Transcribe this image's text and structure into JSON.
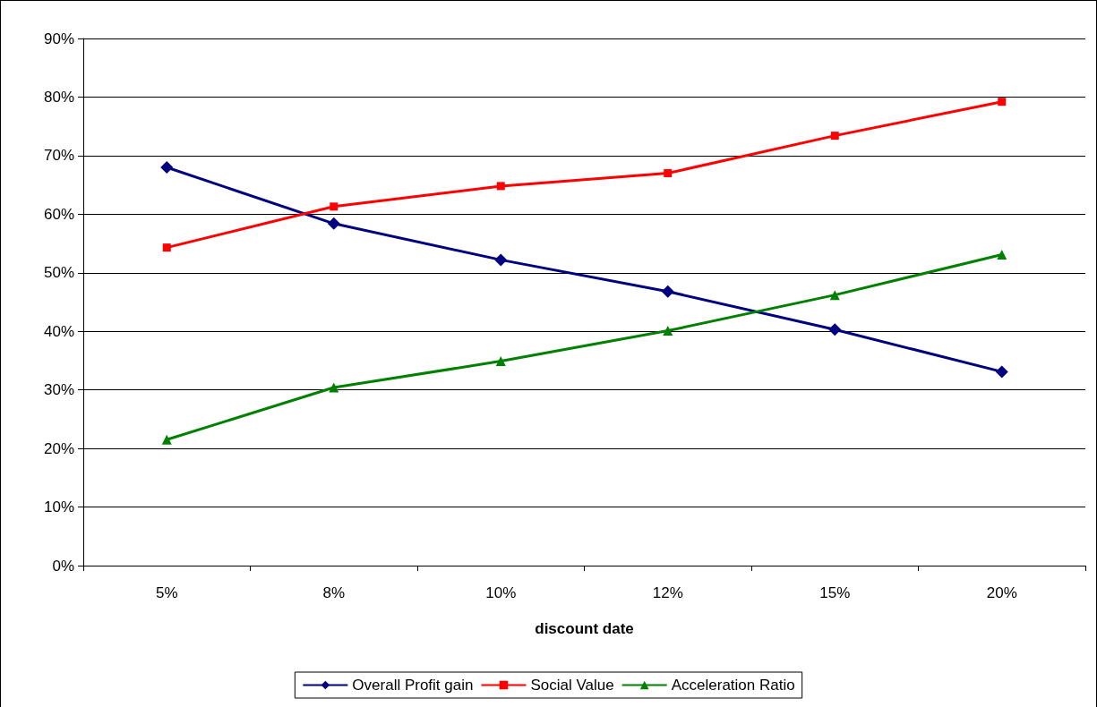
{
  "chart_data": {
    "type": "line",
    "xlabel": "discount date",
    "categories": [
      "5%",
      "8%",
      "10%",
      "12%",
      "15%",
      "20%"
    ],
    "series": [
      {
        "name": "Overall Profit gain",
        "color": "#000080",
        "marker": "diamond",
        "values": [
          68.0,
          58.4,
          52.2,
          46.8,
          40.3,
          33.1
        ]
      },
      {
        "name": "Social Value",
        "color": "#ff0000",
        "marker": "square",
        "values": [
          54.3,
          61.3,
          64.8,
          67.0,
          73.4,
          79.2
        ]
      },
      {
        "name": "Acceleration Ratio",
        "color": "#008000",
        "marker": "triangle",
        "values": [
          21.5,
          30.4,
          34.9,
          40.1,
          46.2,
          53.1
        ]
      }
    ],
    "ylim": [
      0,
      90
    ],
    "yticks": [
      {
        "value": 0,
        "label": "0%"
      },
      {
        "value": 10,
        "label": "10%"
      },
      {
        "value": 20,
        "label": "20%"
      },
      {
        "value": 30,
        "label": "30%"
      },
      {
        "value": 40,
        "label": "40%"
      },
      {
        "value": 50,
        "label": "50%"
      },
      {
        "value": 60,
        "label": "60%"
      },
      {
        "value": 70,
        "label": "70%"
      },
      {
        "value": 80,
        "label": "80%"
      },
      {
        "value": 90,
        "label": "90%"
      }
    ],
    "grid": "y",
    "legend": "bottom",
    "line_style": "solid"
  }
}
